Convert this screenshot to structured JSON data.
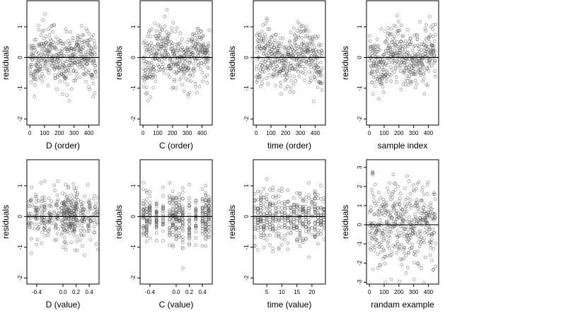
{
  "figure": {
    "point_style": "open-circle",
    "point_color": "#555555",
    "reference_line": "y = 0"
  },
  "chart_data": [
    {
      "type": "scatter",
      "panel": "row1-col1",
      "xlabel": "D (order)",
      "ylabel": "residuals",
      "xlim": [
        -20,
        470
      ],
      "ylim": [
        -2.2,
        1.85
      ],
      "xticks": [
        0,
        100,
        200,
        300,
        400
      ],
      "xtick_labels": [
        "0",
        "100",
        "200",
        "300",
        "400"
      ],
      "yticks": [
        -2,
        -1,
        0,
        1
      ],
      "ytick_labels": [
        "-2",
        "-1",
        "0",
        "1"
      ],
      "grid": false,
      "n": 450,
      "points_pattern": "order",
      "seed": 11
    },
    {
      "type": "scatter",
      "panel": "row1-col2",
      "xlabel": "C (order)",
      "ylabel": "residuals",
      "xlim": [
        -20,
        470
      ],
      "ylim": [
        -2.2,
        1.85
      ],
      "xticks": [
        0,
        100,
        200,
        300,
        400
      ],
      "xtick_labels": [
        "0",
        "100",
        "200",
        "300",
        "400"
      ],
      "yticks": [
        -2,
        -1,
        0,
        1
      ],
      "ytick_labels": [
        "-2",
        "-1",
        "0",
        "1"
      ],
      "grid": false,
      "n": 450,
      "points_pattern": "order",
      "seed": 23
    },
    {
      "type": "scatter",
      "panel": "row1-col3",
      "xlabel": "time (order)",
      "ylabel": "residuals",
      "xlim": [
        -20,
        470
      ],
      "ylim": [
        -2.2,
        1.85
      ],
      "xticks": [
        0,
        100,
        200,
        300,
        400
      ],
      "xtick_labels": [
        "0",
        "100",
        "200",
        "300",
        "400"
      ],
      "yticks": [
        -2,
        -1,
        0,
        1
      ],
      "ytick_labels": [
        "-2",
        "-1",
        "0",
        "1"
      ],
      "grid": false,
      "n": 450,
      "points_pattern": "order",
      "seed": 37
    },
    {
      "type": "scatter",
      "panel": "row1-col4",
      "xlabel": "sample index",
      "ylabel": "residuals",
      "xlim": [
        -20,
        470
      ],
      "ylim": [
        -2.2,
        1.85
      ],
      "xticks": [
        0,
        100,
        200,
        300,
        400
      ],
      "xtick_labels": [
        "0",
        "100",
        "200",
        "300",
        "400"
      ],
      "yticks": [
        -2,
        -1,
        0,
        1
      ],
      "ytick_labels": [
        "-2",
        "-1",
        "0",
        "1"
      ],
      "grid": false,
      "n": 450,
      "points_pattern": "order",
      "seed": 41
    },
    {
      "type": "scatter",
      "panel": "row2-col1",
      "xlabel": "D (value)",
      "ylabel": "residuals",
      "xlim": [
        -0.55,
        0.55
      ],
      "ylim": [
        -2.2,
        1.85
      ],
      "xticks": [
        -0.4,
        0.0,
        0.2,
        0.4
      ],
      "xtick_labels": [
        "-0.4",
        "0.0",
        "0.2",
        "0.4"
      ],
      "yticks": [
        -2,
        -1,
        0,
        1
      ],
      "ytick_labels": [
        "-2",
        "-1",
        "0",
        "1"
      ],
      "grid": false,
      "n": 450,
      "points_pattern": "value-jitter",
      "seed": 53
    },
    {
      "type": "scatter",
      "panel": "row2-col2",
      "xlabel": "C (value)",
      "ylabel": "residuals",
      "xlim": [
        -0.55,
        0.55
      ],
      "ylim": [
        -2.2,
        1.85
      ],
      "xticks": [
        -0.4,
        0.0,
        0.2,
        0.4
      ],
      "xtick_labels": [
        "-0.4",
        "0.0",
        "0.2",
        "0.4"
      ],
      "yticks": [
        -2,
        -1,
        0,
        1
      ],
      "ytick_labels": [
        "-2",
        "-1",
        "0",
        "1"
      ],
      "grid": false,
      "n": 450,
      "points_pattern": "value-discrete",
      "seed": 61
    },
    {
      "type": "scatter",
      "panel": "row2-col3",
      "xlabel": "time (value)",
      "ylabel": "residuals",
      "xlim": [
        0.5,
        24.5
      ],
      "ylim": [
        -2.2,
        1.85
      ],
      "xticks": [
        5,
        10,
        15,
        20
      ],
      "xtick_labels": [
        "5",
        "10",
        "15",
        "20"
      ],
      "yticks": [
        -2,
        -1,
        0,
        1
      ],
      "ytick_labels": [
        "-2",
        "-1",
        "0",
        "1"
      ],
      "grid": false,
      "n": 450,
      "points_pattern": "time-discrete",
      "seed": 71
    },
    {
      "type": "scatter",
      "panel": "row2-col4",
      "xlabel": "randam example",
      "ylabel": "residuals",
      "xlim": [
        -20,
        470
      ],
      "ylim": [
        -3.1,
        3.4
      ],
      "xticks": [
        0,
        100,
        200,
        300,
        400
      ],
      "xtick_labels": [
        "0",
        "100",
        "200",
        "300",
        "400"
      ],
      "yticks": [
        -3,
        -2,
        -1,
        0,
        1,
        2,
        3
      ],
      "ytick_labels": [
        "-3",
        "-2",
        "-1",
        "0",
        "1",
        "2",
        "3"
      ],
      "grid": false,
      "n": 450,
      "points_pattern": "random-normal",
      "seed": 83
    }
  ]
}
